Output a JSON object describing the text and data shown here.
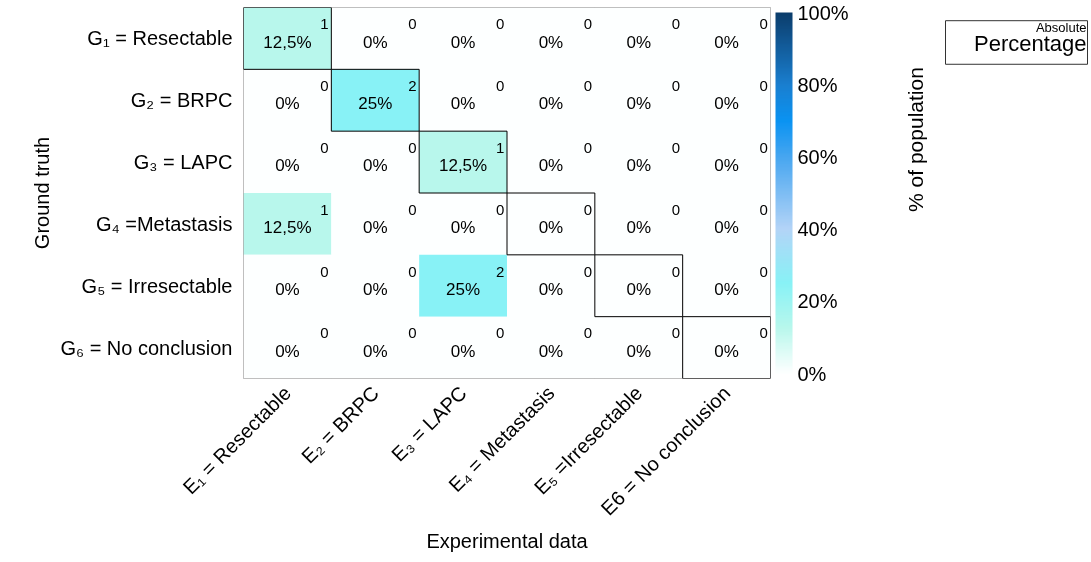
{
  "chart_data": {
    "type": "heatmap",
    "xlabel": "Experimental data",
    "ylabel": "Ground truth",
    "clabel": "% of population",
    "categories": [
      "E₁ = Resectable",
      "E₂ = BRPC",
      "E₃ = LAPC",
      "E₄ = Metastasis",
      "E₅ =Irresectable",
      "E6 = No conclusion"
    ],
    "y_categories": [
      "G₁ = Resectable",
      "G₂ = BRPC",
      "G₃ = LAPC",
      "G₄ =Metastasis",
      "G₅ = Irresectable",
      "G₆ = No conclusion"
    ],
    "cells": [
      [
        12.5,
        0,
        0,
        0,
        0,
        0
      ],
      [
        0,
        25,
        0,
        0,
        0,
        0
      ],
      [
        0,
        0,
        12.5,
        0,
        0,
        0
      ],
      [
        12.5,
        0,
        0,
        0,
        0,
        0
      ],
      [
        0,
        0,
        25,
        0,
        0,
        0
      ],
      [
        0,
        0,
        0,
        0,
        0,
        0
      ]
    ],
    "cell_labels": [
      [
        "12,5%",
        "0%",
        "0%",
        "0%",
        "0%",
        "0%"
      ],
      [
        "0%",
        "25%",
        "0%",
        "0%",
        "0%",
        "0%"
      ],
      [
        "0%",
        "0%",
        "12,5%",
        "0%",
        "0%",
        "0%"
      ],
      [
        "12,5%",
        "0%",
        "0%",
        "0%",
        "0%",
        "0%"
      ],
      [
        "0%",
        "0%",
        "25%",
        "0%",
        "0%",
        "0%"
      ],
      [
        "0%",
        "0%",
        "0%",
        "0%",
        "0%",
        "0%"
      ]
    ],
    "clim": [
      0,
      100
    ],
    "cticks": [
      {
        "value": 0,
        "label": "0%"
      },
      {
        "value": 20,
        "label": "20%"
      },
      {
        "value": 40,
        "label": "40%"
      },
      {
        "value": 60,
        "label": "60%"
      },
      {
        "value": 80,
        "label": "80%"
      },
      {
        "value": 100,
        "label": "100%"
      }
    ],
    "annotations": [
      "Absolute",
      "Percentage",
      "1",
      "0",
      "0",
      "0",
      "0",
      "0",
      "0",
      "2",
      "0",
      "0",
      "0",
      "0",
      "0",
      "0",
      "1",
      "0",
      "0",
      "0",
      "1",
      "0",
      "0",
      "0",
      "0",
      "0",
      "0",
      "0",
      "2",
      "0",
      "0",
      "0",
      "0",
      "0",
      "0",
      "0",
      "0",
      "0"
    ]
  }
}
